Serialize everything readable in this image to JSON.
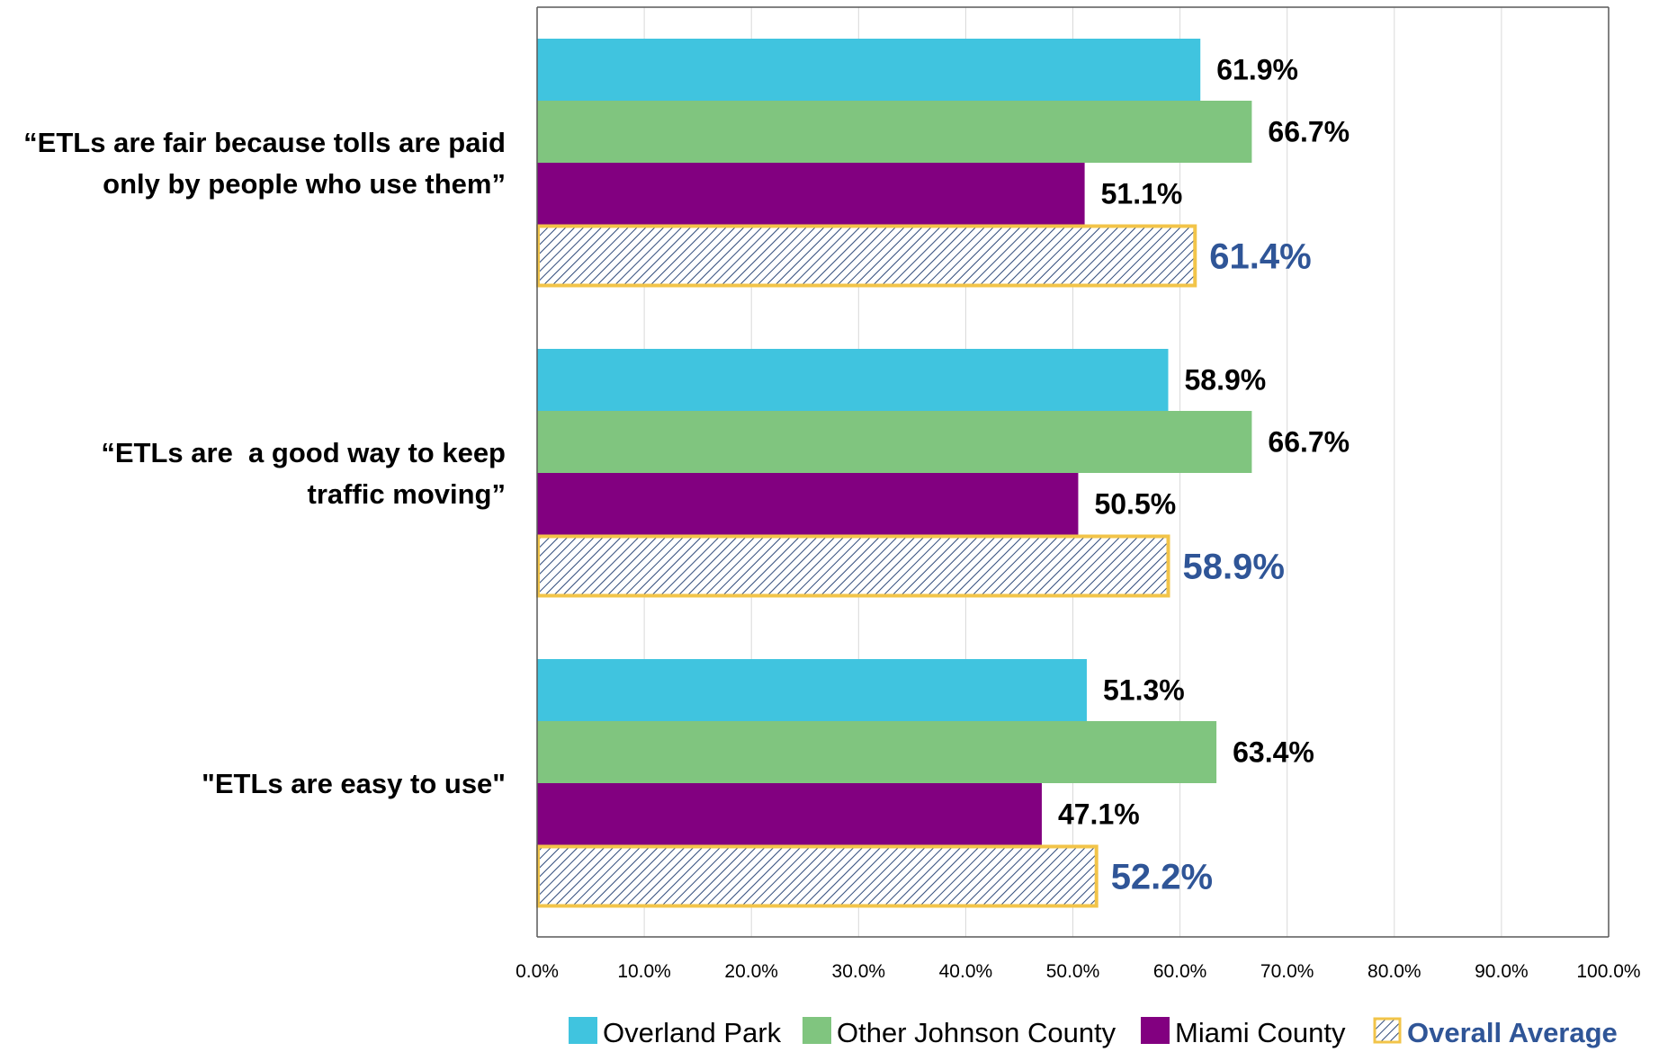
{
  "chart_data": {
    "type": "bar",
    "orientation": "horizontal",
    "categories": [
      "“ETLs are fair because tolls are paid only by people who use them”",
      "“ETLs are a good way to keep traffic moving”",
      "\"ETLs are easy to use\""
    ],
    "category_lines": [
      [
        "“ETLs are fair because tolls are paid",
        "only by people who use them”"
      ],
      [
        "“ETLs are  a good way to keep",
        "traffic moving”"
      ],
      [
        "\"ETLs are easy to use\""
      ]
    ],
    "series": [
      {
        "name": "Overland Park",
        "color": "#40C4DF",
        "values": [
          61.9,
          58.9,
          51.3
        ],
        "labels": [
          "61.9%",
          "58.9%",
          "51.3%"
        ]
      },
      {
        "name": "Other Johnson County",
        "color": "#80C57F",
        "values": [
          66.7,
          66.7,
          63.4
        ],
        "labels": [
          "66.7%",
          "66.7%",
          "63.4%"
        ]
      },
      {
        "name": "Miami County",
        "color": "#820080",
        "values": [
          51.1,
          50.5,
          47.1
        ],
        "labels": [
          "51.1%",
          "50.5%",
          "47.1%"
        ]
      },
      {
        "name": "Overall Average",
        "color": "#F2C449",
        "pattern": "diagonal-hatch",
        "values": [
          61.4,
          58.9,
          52.2
        ],
        "labels": [
          "61.4%",
          "58.9%",
          "52.2%"
        ]
      }
    ],
    "xlim": [
      0,
      100
    ],
    "x_ticks": [
      "0.0%",
      "10.0%",
      "20.0%",
      "30.0%",
      "40.0%",
      "50.0%",
      "60.0%",
      "70.0%",
      "80.0%",
      "90.0%",
      "100.0%"
    ],
    "grid": "vertical",
    "legend": "bottom",
    "avg_label_color": "#2F5597",
    "hatch_color": "#2F4A7A"
  }
}
